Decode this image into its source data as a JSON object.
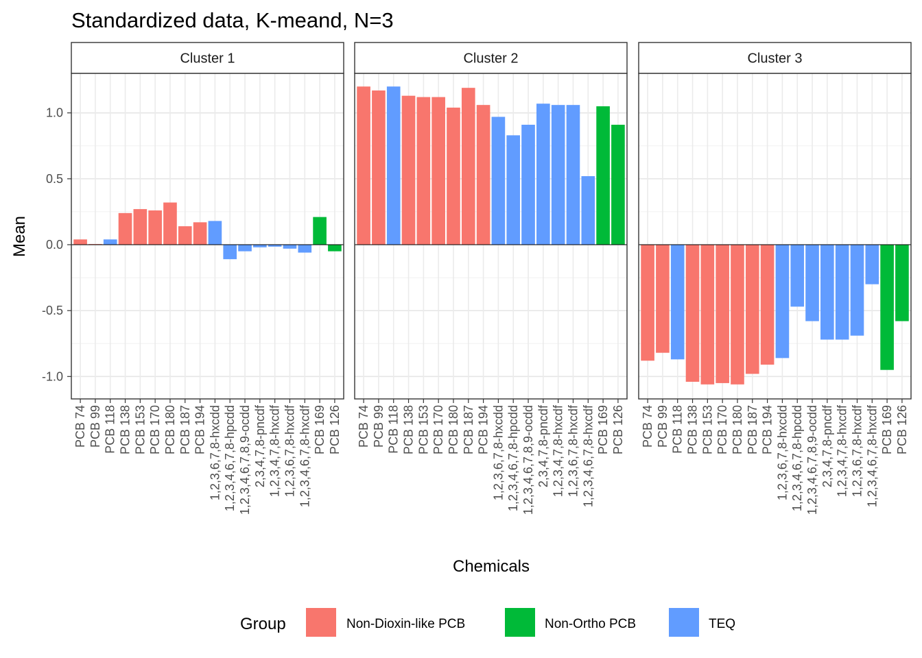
{
  "chart_data": {
    "type": "bar",
    "title": "Standardized data, K-meand, N=3",
    "xlabel": "Chemicals",
    "ylabel": "Mean",
    "ylim": [
      -1.17,
      1.3
    ],
    "yticks": [
      -1.0,
      -0.5,
      0.0,
      0.5,
      1.0
    ],
    "ytick_labels": [
      "-1.0",
      "-0.5",
      "0.0",
      "0.5",
      "1.0"
    ],
    "grid": true,
    "legend_position": "bottom",
    "legend_title": "Group",
    "categories": [
      "PCB 74",
      "PCB 99",
      "PCB 118",
      "PCB 138",
      "PCB 153",
      "PCB 170",
      "PCB 180",
      "PCB 187",
      "PCB 194",
      "1,2,3,6,7,8-hxcdd",
      "1,2,3,4,6,7,8-hpcdd",
      "1,2,3,4,6,7,8,9-ocdd",
      "2,3,4,7,8-pncdf",
      "1,2,3,4,7,8-hxcdf",
      "1,2,3,6,7,8-hxcdf",
      "1,2,3,4,6,7,8-hxcdf",
      "PCB 169",
      "PCB 126"
    ],
    "category_groups": [
      "Non-Dioxin-like PCB",
      "Non-Dioxin-like PCB",
      "TEQ",
      "Non-Dioxin-like PCB",
      "Non-Dioxin-like PCB",
      "Non-Dioxin-like PCB",
      "Non-Dioxin-like PCB",
      "Non-Dioxin-like PCB",
      "Non-Dioxin-like PCB",
      "TEQ",
      "TEQ",
      "TEQ",
      "TEQ",
      "TEQ",
      "TEQ",
      "TEQ",
      "Non-Ortho PCB",
      "Non-Ortho PCB"
    ],
    "groups": [
      {
        "name": "Non-Dioxin-like PCB",
        "color": "#F8766D"
      },
      {
        "name": "Non-Ortho PCB",
        "color": "#00BA38"
      },
      {
        "name": "TEQ",
        "color": "#619CFF"
      }
    ],
    "panels": [
      {
        "label": "Cluster 1",
        "values": [
          0.04,
          0.005,
          0.04,
          0.24,
          0.27,
          0.26,
          0.32,
          0.14,
          0.17,
          0.18,
          -0.11,
          -0.05,
          -0.02,
          -0.015,
          -0.03,
          -0.06,
          0.21,
          -0.05
        ]
      },
      {
        "label": "Cluster 2",
        "values": [
          1.2,
          1.17,
          1.2,
          1.13,
          1.12,
          1.12,
          1.04,
          1.19,
          1.06,
          0.97,
          0.83,
          0.91,
          1.07,
          1.06,
          1.06,
          0.52,
          1.05,
          0.91
        ]
      },
      {
        "label": "Cluster 3",
        "values": [
          -0.88,
          -0.82,
          -0.87,
          -1.04,
          -1.06,
          -1.05,
          -1.06,
          -0.98,
          -0.91,
          -0.86,
          -0.47,
          -0.58,
          -0.72,
          -0.72,
          -0.69,
          -0.3,
          -0.95,
          -0.58
        ]
      }
    ]
  }
}
